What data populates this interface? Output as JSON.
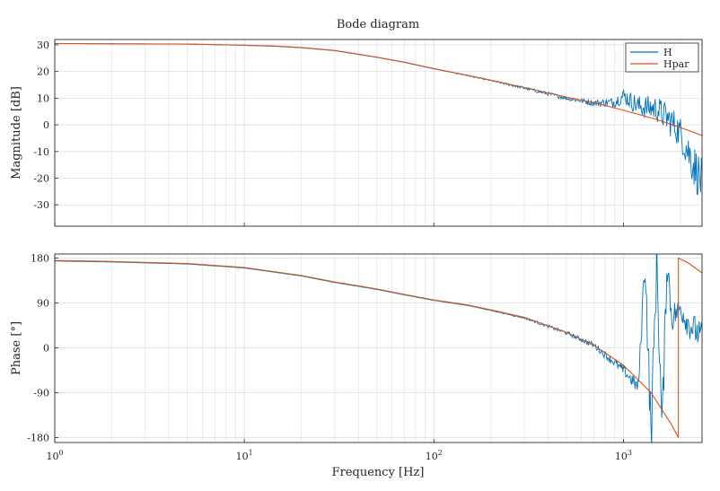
{
  "chart_data": {
    "type": "line",
    "title": "Bode diagram",
    "xlabel": "Frequency [Hz]",
    "xscale": "log",
    "xlim": [
      1,
      2600
    ],
    "xticks": [
      1,
      10,
      100,
      1000
    ],
    "xtick_labels": [
      "10^0",
      "10^1",
      "10^2",
      "10^3"
    ],
    "grid": true,
    "legend": {
      "placement": "top-right",
      "entries": [
        "H",
        "Hpar"
      ]
    },
    "colors": {
      "H": "#0072BD",
      "Hpar": "#D95319",
      "axes": "#262626",
      "grid": "#dfdfdf"
    },
    "panels": [
      {
        "ylabel": "Magnitude [dB]",
        "ylim": [
          -38,
          32
        ],
        "yticks": [
          30,
          20,
          10,
          0,
          -10,
          -20,
          -30
        ],
        "series": [
          {
            "name": "H",
            "noisy": true,
            "x": [
              1,
              2,
              5,
              10,
              15,
              20,
              30,
              50,
              70,
              100,
              150,
              200,
              300,
              500,
              700,
              900,
              1000,
              1200,
              1500,
              1800,
              2000,
              2200,
              2600
            ],
            "y": [
              30.5,
              30.4,
              30.3,
              29.8,
              29.4,
              28.9,
              27.8,
              25.3,
              23.4,
              21.0,
              18.5,
              16.6,
              13.8,
              10.0,
              8.2,
              8.5,
              11.0,
              7.0,
              6.0,
              1.0,
              -3.0,
              -10.0,
              -22.0
            ],
            "noise": [
              0,
              0,
              0,
              0,
              0,
              0,
              0,
              0,
              0,
              0,
              0.2,
              0.3,
              0.6,
              0.8,
              1.2,
              2.0,
              3.0,
              4.0,
              5.0,
              6.0,
              6.0,
              8.0,
              9.0
            ]
          },
          {
            "name": "Hpar",
            "noisy": false,
            "x": [
              1,
              2,
              5,
              10,
              15,
              20,
              30,
              50,
              70,
              100,
              150,
              200,
              300,
              500,
              700,
              1000,
              1500,
              2000,
              2600
            ],
            "y": [
              30.5,
              30.4,
              30.3,
              29.9,
              29.5,
              29.0,
              27.9,
              25.4,
              23.5,
              21.1,
              18.6,
              16.7,
              14.0,
              10.4,
              8.3,
              5.5,
              2.0,
              -1.0,
              -4.0
            ]
          }
        ]
      },
      {
        "ylabel": "Phase [°]",
        "ylim": [
          -190,
          188
        ],
        "yticks": [
          180,
          90,
          0,
          -90,
          -180
        ],
        "series": [
          {
            "name": "H",
            "noisy": true,
            "x": [
              1,
              2,
              5,
              10,
              20,
              30,
              50,
              70,
              100,
              150,
              200,
              300,
              500,
              700,
              1000,
              1200,
              1300,
              1400,
              1500,
              1600,
              1700,
              1800,
              2000,
              2200,
              2600
            ],
            "y": [
              174,
              172,
              168,
              160,
              144,
              131,
              117,
              106,
              95,
              85,
              75,
              60,
              30,
              5,
              -45,
              -80,
              180,
              -180,
              180,
              -170,
              180,
              60,
              80,
              50,
              20
            ],
            "noise": [
              0,
              0,
              0,
              0,
              0,
              0,
              0,
              0,
              0,
              0,
              1,
              2,
              4,
              6,
              10,
              15,
              40,
              60,
              60,
              50,
              40,
              30,
              25,
              30,
              30
            ]
          },
          {
            "name": "Hpar",
            "noisy": false,
            "x": [
              1,
              2,
              5,
              10,
              20,
              30,
              50,
              70,
              100,
              150,
              200,
              300,
              500,
              700,
              1000,
              1400,
              1800,
              1950,
              1951,
              2200,
              2600
            ],
            "y": [
              175,
              173,
              169,
              161,
              145,
              132,
              118,
              107,
              96,
              86,
              76,
              61,
              31,
              5,
              -35,
              -90,
              -155,
              -180,
              180,
              170,
              150
            ]
          }
        ]
      }
    ]
  }
}
